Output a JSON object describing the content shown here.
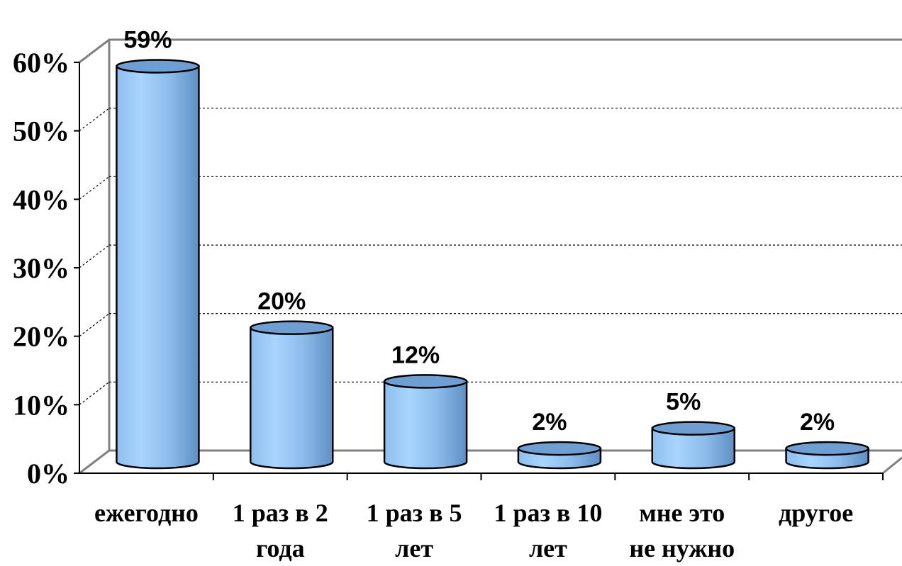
{
  "chart_data": {
    "type": "bar",
    "categories": [
      [
        "ежегодно"
      ],
      [
        "1 раз в 2",
        "года"
      ],
      [
        "1 раз в 5",
        "лет"
      ],
      [
        "1 раз в 10",
        "лет"
      ],
      [
        "мне это",
        "не нужно"
      ],
      [
        "другое"
      ]
    ],
    "values": [
      59,
      20,
      12,
      2,
      5,
      2
    ],
    "value_labels": [
      "59%",
      "20%",
      "12%",
      "2%",
      "5%",
      "2%"
    ],
    "y_ticks": [
      "0%",
      "10%",
      "20%",
      "30%",
      "40%",
      "50%",
      "60%"
    ],
    "ylim": [
      0,
      60
    ],
    "grid": true,
    "style": "3d-cylinder",
    "colors": {
      "bar_light": "#a9d3ff",
      "bar_mid": "#8ab8e8",
      "bar_dark": "#5f8fc4",
      "bar_top": "#6f9fd2",
      "grid": "#000000"
    }
  }
}
